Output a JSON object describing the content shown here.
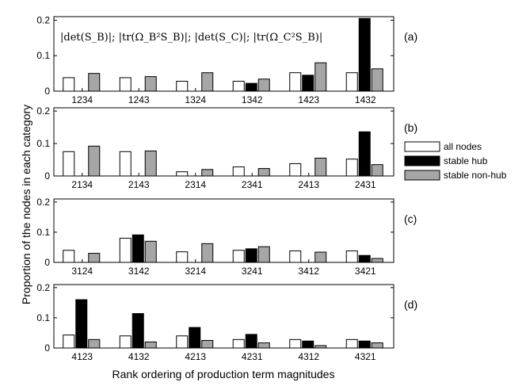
{
  "chart_data": {
    "type": "bar",
    "ylabel": "Proportion of the nodes in each category",
    "xlabel": "Rank ordering of production term magnitudes",
    "ylim": [
      0,
      0.21
    ],
    "yticks": [
      "0",
      "0.1",
      "0.2"
    ],
    "annotation": "|det(S_B)|; |tr(Ω_B²S_B)|; |det(S_C)|; |tr(Ω_C²S_B)|",
    "legend": {
      "position": "right",
      "entries": [
        {
          "name": "all nodes",
          "color": "#ffffff"
        },
        {
          "name": "stable hub",
          "color": "#000000"
        },
        {
          "name": "stable non-hub",
          "color": "#a6a6a6"
        }
      ]
    },
    "panels": [
      {
        "label": "(a)",
        "categories": [
          "1234",
          "1243",
          "1324",
          "1342",
          "1423",
          "1432"
        ],
        "series": [
          {
            "name": "all nodes",
            "values": [
              0.038,
              0.038,
              0.028,
              0.028,
              0.052,
              0.052
            ]
          },
          {
            "name": "stable hub",
            "values": [
              0,
              0,
              0,
              0.022,
              0.045,
              0.205
            ]
          },
          {
            "name": "stable non-hub",
            "values": [
              0.05,
              0.041,
              0.052,
              0.034,
              0.08,
              0.063
            ]
          }
        ]
      },
      {
        "label": "(b)",
        "categories": [
          "2134",
          "2143",
          "2314",
          "2341",
          "2413",
          "2431"
        ],
        "series": [
          {
            "name": "all nodes",
            "values": [
              0.075,
              0.075,
              0.013,
              0.028,
              0.038,
              0.052
            ]
          },
          {
            "name": "stable hub",
            "values": [
              0,
              0,
              0,
              0,
              0,
              0.136
            ]
          },
          {
            "name": "stable non-hub",
            "values": [
              0.092,
              0.077,
              0.02,
              0.023,
              0.055,
              0.035
            ]
          }
        ]
      },
      {
        "label": "(c)",
        "categories": [
          "3124",
          "3142",
          "3214",
          "3241",
          "3412",
          "3421"
        ],
        "series": [
          {
            "name": "all nodes",
            "values": [
              0.04,
              0.08,
              0.035,
              0.04,
              0.038,
              0.038
            ]
          },
          {
            "name": "stable hub",
            "values": [
              0,
              0.091,
              0,
              0.045,
              0,
              0.023
            ]
          },
          {
            "name": "stable non-hub",
            "values": [
              0.03,
              0.07,
              0.062,
              0.052,
              0.034,
              0.013
            ]
          }
        ]
      },
      {
        "label": "(d)",
        "categories": [
          "4123",
          "4132",
          "4213",
          "4231",
          "4312",
          "4321"
        ],
        "series": [
          {
            "name": "all nodes",
            "values": [
              0.043,
              0.04,
              0.04,
              0.028,
              0.028,
              0.028
            ]
          },
          {
            "name": "stable hub",
            "values": [
              0.16,
              0.114,
              0.068,
              0.045,
              0.023,
              0.023
            ]
          },
          {
            "name": "stable non-hub",
            "values": [
              0.028,
              0.02,
              0.025,
              0.017,
              0.008,
              0.017
            ]
          }
        ]
      }
    ]
  }
}
